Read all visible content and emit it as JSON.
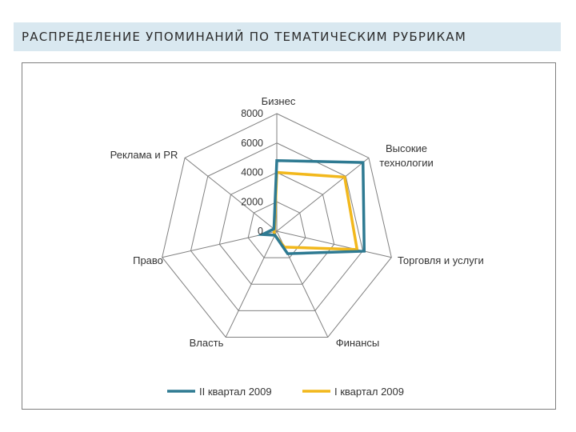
{
  "header": {
    "title": "РАСПРЕДЕЛЕНИЕ УПОМИНАНИЙ ПО ТЕМАТИЧЕСКИМ РУБРИКАМ"
  },
  "colors": {
    "series1": "#2e7a92",
    "series2": "#f2b81c",
    "grid": "#808080",
    "title_bg": "#d9e8f0"
  },
  "chart_data": {
    "type": "radar",
    "categories": [
      "Бизнес",
      "Высокие технологии",
      "Торговля и услуги",
      "Финансы",
      "Власть",
      "Право",
      "Реклама и PR"
    ],
    "category_lines": [
      [
        "Бизнес"
      ],
      [
        "Высокие",
        "технологии"
      ],
      [
        "Торговля и услуги"
      ],
      [
        "Финансы"
      ],
      [
        "Власть"
      ],
      [
        "Право"
      ],
      [
        "Реклама и PR"
      ]
    ],
    "ticks": [
      "0",
      "2000",
      "4000",
      "6000",
      "8000"
    ],
    "rmax": 8000,
    "series": [
      {
        "name": "II квартал 2009",
        "values": [
          4800,
          7500,
          6100,
          1700,
          300,
          1000,
          250
        ]
      },
      {
        "name": "I квартал 2009",
        "values": [
          4000,
          5900,
          5600,
          1200,
          300,
          200,
          200
        ]
      }
    ],
    "legend": "bottom"
  }
}
